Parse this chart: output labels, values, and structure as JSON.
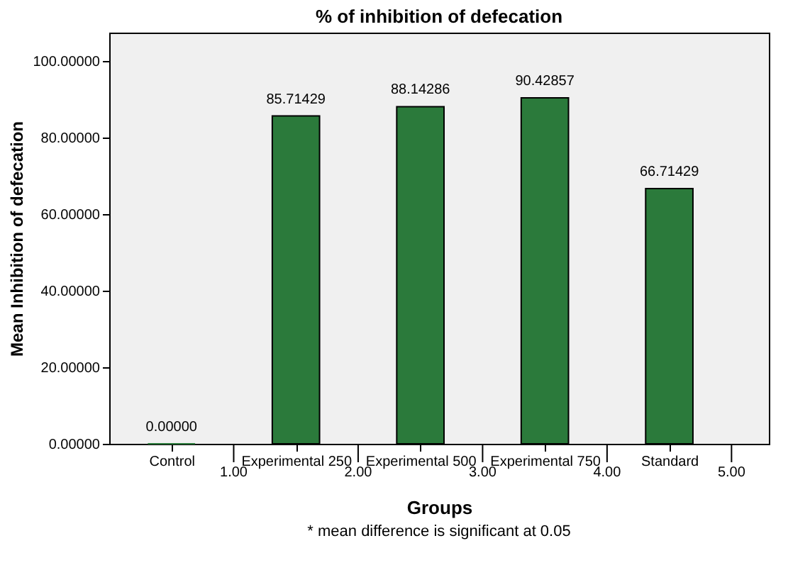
{
  "chart_data": {
    "type": "bar",
    "title": "% of inhibition of defecation",
    "xlabel": "Groups",
    "ylabel": "Mean Inhibition of defecation",
    "categories": [
      "Control",
      "Experimental 250",
      "Experimental 500",
      "Experimental 750",
      "Standard"
    ],
    "values": [
      0.0,
      85.71429,
      88.14286,
      90.42857,
      66.71429
    ],
    "value_labels": [
      "0.00000",
      "85.71429",
      "88.14286",
      "90.42857",
      "66.71429"
    ],
    "color": "#2b7a3b",
    "ylim": [
      0,
      107.5
    ],
    "yticks": [
      {
        "value": 0,
        "label": "0.00000"
      },
      {
        "value": 20,
        "label": "20.00000"
      },
      {
        "value": 40,
        "label": "40.00000"
      },
      {
        "value": 60,
        "label": "60.00000"
      },
      {
        "value": 80,
        "label": "80.00000"
      },
      {
        "value": 100,
        "label": "100.00000"
      }
    ],
    "grid": false,
    "annotations": [
      "1.00",
      "2.00",
      "3.00",
      "4.00",
      "5.00",
      "* mean difference is significant at 0.05"
    ]
  }
}
